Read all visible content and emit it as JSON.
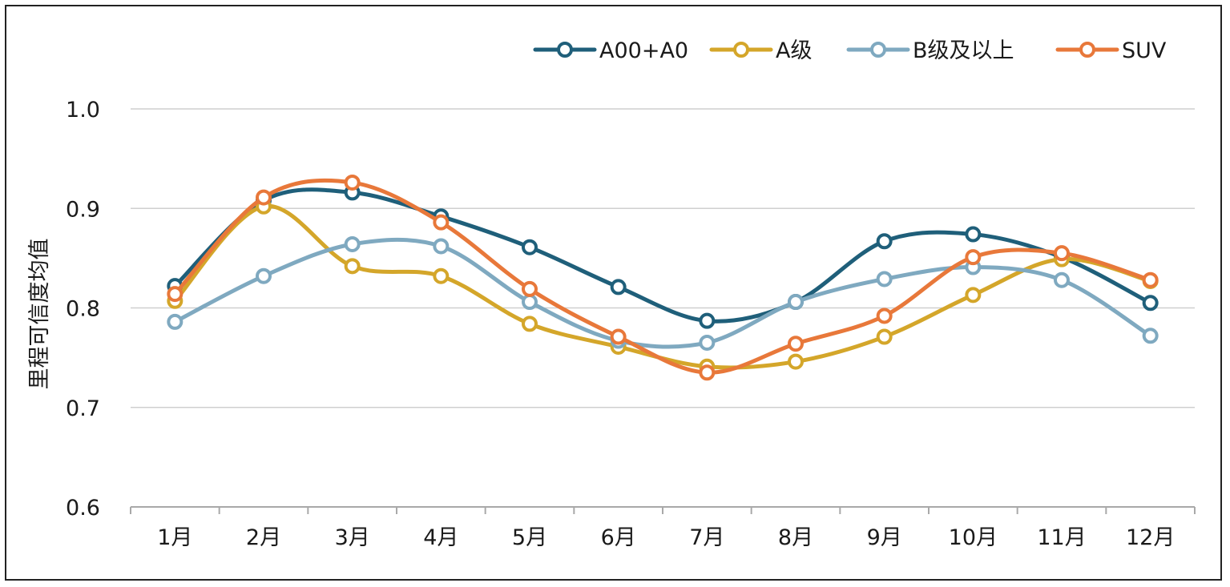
{
  "chart_data": {
    "type": "line",
    "title": "",
    "xlabel": "",
    "ylabel": "里程可信度均值",
    "ylim": [
      0.6,
      1.0
    ],
    "yticks": [
      0.6,
      0.7,
      0.8,
      0.9,
      1.0
    ],
    "ytick_labels": [
      "0.6",
      "0.7",
      "0.8",
      "0.9",
      "1.0"
    ],
    "grid": true,
    "legend_position": "top-right",
    "categories": [
      "1月",
      "2月",
      "3月",
      "4月",
      "5月",
      "6月",
      "7月",
      "8月",
      "9月",
      "10月",
      "11月",
      "12月"
    ],
    "series": [
      {
        "name": "A00+A0",
        "color": "#1f5f7a",
        "values": [
          0.822,
          0.908,
          0.916,
          0.892,
          0.861,
          0.821,
          0.787,
          0.806,
          0.867,
          0.874,
          0.851,
          0.805
        ]
      },
      {
        "name": "A级",
        "color": "#d4a62a",
        "values": [
          0.807,
          0.902,
          0.842,
          0.832,
          0.784,
          0.761,
          0.741,
          0.746,
          0.771,
          0.813,
          0.849,
          0.827
        ]
      },
      {
        "name": "B级及以上",
        "color": "#7fa9c0",
        "values": [
          0.786,
          0.832,
          0.864,
          0.862,
          0.806,
          0.767,
          0.765,
          0.806,
          0.829,
          0.841,
          0.828,
          0.772
        ]
      },
      {
        "name": "SUV",
        "color": "#e8783a",
        "values": [
          0.814,
          0.911,
          0.926,
          0.886,
          0.819,
          0.771,
          0.735,
          0.764,
          0.792,
          0.851,
          0.855,
          0.828
        ]
      }
    ]
  }
}
